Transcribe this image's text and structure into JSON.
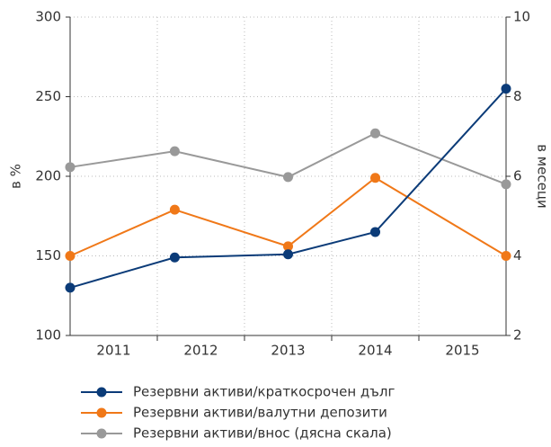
{
  "chart_data": {
    "type": "line",
    "categories": [
      "2011",
      "2012",
      "2013",
      "2014",
      "2015"
    ],
    "x": [
      2011,
      2012.2,
      2013.5,
      2014.5,
      2016
    ],
    "xlim": [
      2011,
      2016
    ],
    "ylabel": "в %",
    "y2label": "в месеци",
    "ylim": [
      100,
      300
    ],
    "yticks": [
      100,
      150,
      200,
      250,
      300
    ],
    "y2lim": [
      2,
      10
    ],
    "y2ticks": [
      2,
      4,
      6,
      8,
      10
    ],
    "grid": true,
    "series": [
      {
        "name": "Резервни активи/краткосрочен дълг",
        "color": "#0b3b78",
        "values": [
          130,
          149,
          151,
          165,
          255
        ]
      },
      {
        "name": "Резервни активи/валутни депозити",
        "color": "#f07818",
        "values": [
          150,
          179,
          156,
          199,
          150
        ]
      },
      {
        "name": "Резервни активи/внос (дясна скала)",
        "color": "#999999",
        "axis": "y2",
        "values": [
          6.23,
          6.63,
          5.98,
          7.08,
          5.8
        ]
      }
    ]
  }
}
